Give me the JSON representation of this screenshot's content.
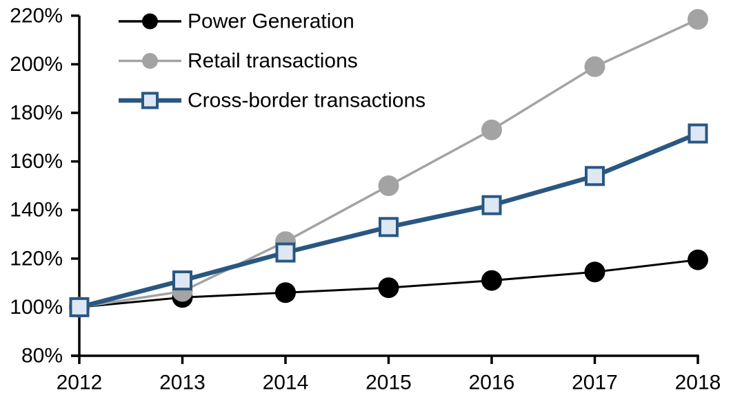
{
  "chart_data": {
    "type": "line",
    "title": "",
    "xlabel": "",
    "ylabel": "",
    "categories": [
      "2012",
      "2013",
      "2014",
      "2015",
      "2016",
      "2017",
      "2018"
    ],
    "series": [
      {
        "name": "Power Generation",
        "marker": "circle",
        "color": "#000000",
        "marker_fill": "#000000",
        "values": [
          100,
          104,
          106,
          108,
          111,
          114.5,
          119.5
        ]
      },
      {
        "name": "Retail transactions",
        "marker": "circle",
        "color": "#A3A3A3",
        "marker_fill": "#A3A3A3",
        "values": [
          100,
          106.5,
          127,
          150,
          173,
          199,
          218.5
        ]
      },
      {
        "name": "Cross-border transactions",
        "marker": "square",
        "color": "#2A5782",
        "marker_fill": "#DDE8F4",
        "values": [
          100,
          111,
          122.5,
          133,
          142,
          154,
          171.5
        ]
      }
    ],
    "ylim": [
      80,
      220
    ],
    "ytick_step": 20,
    "ytick_suffix": "%",
    "ytick_labels": [
      "80%",
      "100%",
      "120%",
      "140%",
      "160%",
      "180%",
      "200%",
      "220%"
    ],
    "grid": false,
    "legend_position": "top-left",
    "axis_color": "#000000",
    "background_color": "#FFFFFF"
  }
}
